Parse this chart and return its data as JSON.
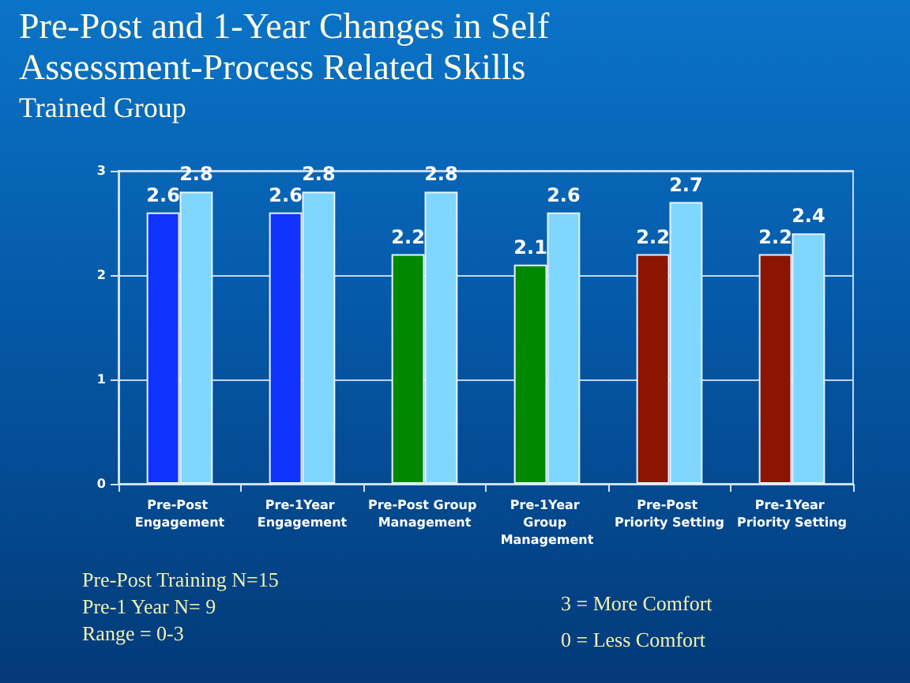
{
  "chart_data": {
    "type": "bar",
    "title": "Pre-Post and 1-Year Changes in Self Assessment-Process Related Skills",
    "subtitle": "Trained Group",
    "categories": [
      "Pre-Post Engagement",
      "Pre-1Year Engagement",
      "Pre-Post Group Management",
      "Pre-1Year Group Management",
      "Pre-Post Priority Setting",
      "Pre-1Year Priority Setting"
    ],
    "series": [
      {
        "colors": [
          "#1133ff",
          "#1133ff",
          "#008800",
          "#008800",
          "#8b1500",
          "#8b1500"
        ],
        "values": [
          2.6,
          2.6,
          2.2,
          2.1,
          2.2,
          2.2
        ]
      },
      {
        "color": "#7fd6ff",
        "values": [
          2.8,
          2.8,
          2.8,
          2.6,
          2.7,
          2.4
        ]
      }
    ],
    "ylim": [
      0,
      3
    ],
    "yticks": [
      0,
      1,
      2,
      3
    ],
    "grid": "y",
    "data_labels": true,
    "annotations": [
      "Pre-Post Training N=15",
      "Pre-1 Year N= 9",
      "Range = 0-3",
      "3 = More Comfort",
      "0 = Less Comfort"
    ]
  }
}
